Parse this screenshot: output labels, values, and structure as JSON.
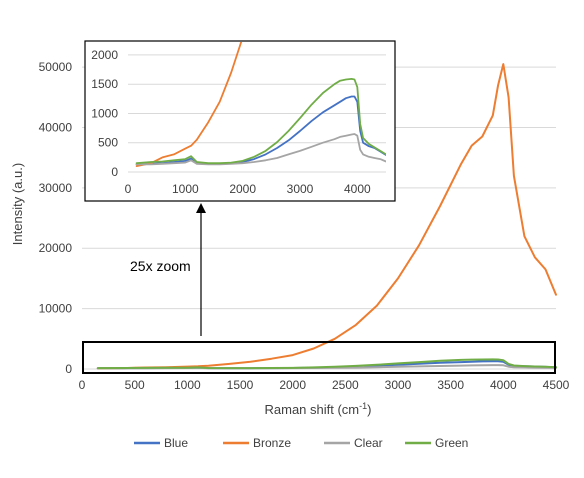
{
  "chart_data": {
    "type": "line",
    "main": {
      "xlabel": "Raman shift (cm",
      "xlabel_sup": "-1",
      "xlabel_end": ")",
      "ylabel": "Intensity (a.u.)",
      "xlim": [
        0,
        4500
      ],
      "ylim": [
        0,
        53000
      ],
      "x_ticks": [
        0,
        500,
        1000,
        1500,
        2000,
        2500,
        3000,
        3500,
        4000,
        4500
      ],
      "x_tick_labels": [
        "0",
        "500",
        "1000",
        "1500",
        "2000",
        "2500",
        "3000",
        "3500",
        "4000",
        "4500"
      ],
      "y_ticks": [
        0,
        10000,
        20000,
        30000,
        40000,
        50000
      ],
      "y_tick_labels": [
        "0",
        "10000",
        "20000",
        "30000",
        "40000",
        "50000"
      ],
      "grid": "horizontal"
    },
    "inset": {
      "xlim": [
        0,
        4500
      ],
      "ylim": [
        0,
        2050
      ],
      "x_ticks": [
        0,
        1000,
        2000,
        3000,
        4000
      ],
      "x_tick_labels": [
        "0",
        "1000",
        "2000",
        "3000",
        "4000"
      ],
      "y_ticks": [
        0,
        500,
        1000,
        1500,
        2000
      ],
      "y_tick_labels": [
        "0",
        "500",
        "1000",
        "1500",
        "2000"
      ],
      "grid": "horizontal"
    },
    "annotation": "25x zoom",
    "legend_position": "bottom",
    "series": [
      {
        "name": "Blue",
        "color": "#4472C4",
        "x": [
          150,
          400,
          600,
          800,
          1000,
          1100,
          1200,
          1400,
          1600,
          1800,
          2000,
          2200,
          2400,
          2600,
          2800,
          3000,
          3200,
          3400,
          3600,
          3700,
          3800,
          3900,
          3950,
          4000,
          4050,
          4100,
          4200,
          4300,
          4400,
          4500
        ],
        "y": [
          130,
          140,
          150,
          170,
          190,
          230,
          150,
          140,
          140,
          150,
          170,
          220,
          300,
          410,
          540,
          700,
          870,
          1020,
          1140,
          1200,
          1260,
          1290,
          1290,
          1200,
          700,
          500,
          440,
          410,
          350,
          290
        ]
      },
      {
        "name": "Bronze",
        "color": "#ED7D31",
        "x": [
          150,
          400,
          500,
          600,
          800,
          1000,
          1100,
          1200,
          1400,
          1600,
          1800,
          2000,
          2200,
          2400,
          2600,
          2800,
          3000,
          3200,
          3400,
          3600,
          3700,
          3800,
          3900,
          3950,
          4000,
          4050,
          4100,
          4200,
          4300,
          4400,
          4500
        ],
        "y": [
          100,
          150,
          200,
          250,
          300,
          400,
          450,
          550,
          850,
          1200,
          1700,
          2300,
          3400,
          5000,
          7300,
          10500,
          15000,
          20500,
          27000,
          34000,
          37000,
          38500,
          42000,
          47000,
          50500,
          45000,
          32000,
          22000,
          18500,
          16500,
          12300
        ]
      },
      {
        "name": "Clear",
        "color": "#A5A5A5",
        "x": [
          150,
          400,
          600,
          800,
          1000,
          1100,
          1200,
          1400,
          1600,
          1800,
          2000,
          2200,
          2400,
          2600,
          2800,
          3000,
          3200,
          3400,
          3600,
          3700,
          3800,
          3900,
          3950,
          4000,
          4050,
          4100,
          4200,
          4300,
          4400,
          4500
        ],
        "y": [
          130,
          130,
          140,
          150,
          160,
          200,
          140,
          130,
          130,
          140,
          150,
          170,
          200,
          240,
          300,
          360,
          430,
          500,
          560,
          600,
          620,
          640,
          650,
          620,
          380,
          300,
          260,
          240,
          220,
          180
        ]
      },
      {
        "name": "Green",
        "color": "#70AD47",
        "x": [
          150,
          400,
          600,
          800,
          1000,
          1100,
          1200,
          1400,
          1600,
          1800,
          2000,
          2200,
          2400,
          2600,
          2800,
          3000,
          3200,
          3400,
          3600,
          3700,
          3800,
          3900,
          3950,
          4000,
          4050,
          4100,
          4200,
          4300,
          4400,
          4500
        ],
        "y": [
          150,
          170,
          180,
          200,
          220,
          270,
          170,
          150,
          150,
          160,
          190,
          260,
          360,
          510,
          700,
          920,
          1150,
          1350,
          1500,
          1560,
          1580,
          1590,
          1580,
          1450,
          820,
          580,
          480,
          420,
          360,
          300
        ]
      }
    ]
  }
}
